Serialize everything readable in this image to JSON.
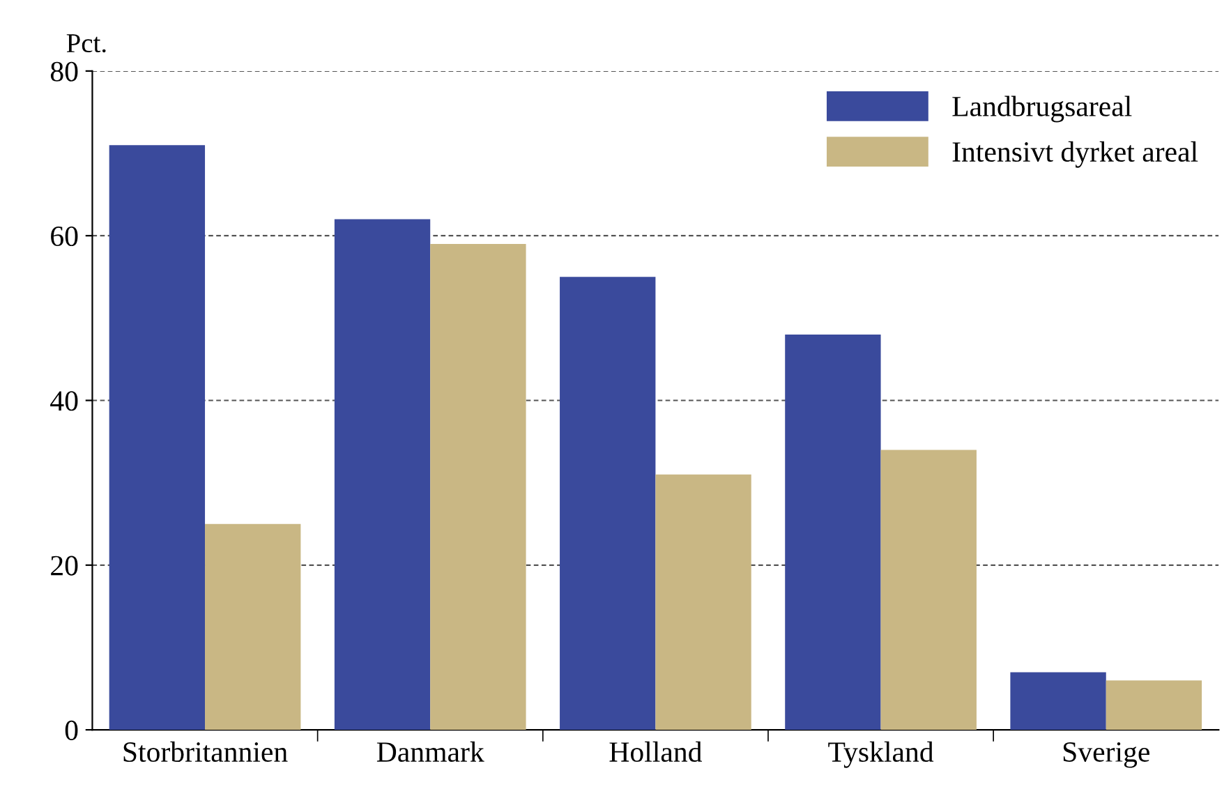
{
  "chart_data": {
    "type": "bar",
    "ylabel": "Pct.",
    "categories": [
      "Storbritannien",
      "Danmark",
      "Holland",
      "Tyskland",
      "Sverige"
    ],
    "series": [
      {
        "name": "Landbrugsareal",
        "color": "#3a4a9c",
        "values": [
          71,
          62,
          55,
          48,
          7
        ]
      },
      {
        "name": "Intensivt dyrket areal",
        "color": "#c9b784",
        "values": [
          25,
          59,
          31,
          34,
          6
        ]
      }
    ],
    "ylim": [
      0,
      80
    ],
    "yticks": [
      0,
      20,
      40,
      60,
      80
    ],
    "grid": "y",
    "legend": "top right"
  }
}
